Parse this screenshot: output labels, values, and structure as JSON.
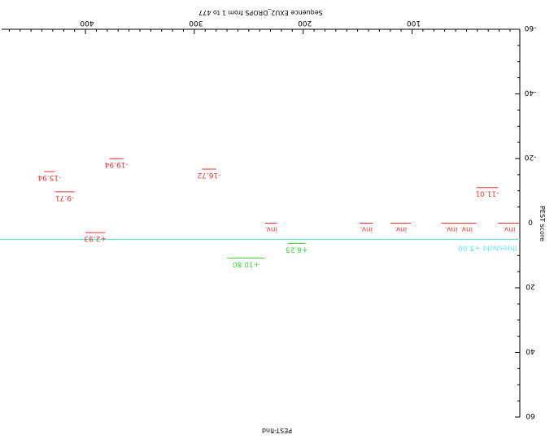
{
  "chart_data": {
    "type": "scatter",
    "title": "Sequence EXU2_DROPS from 1 to 477",
    "xlabel": "PEST-find",
    "ylabel": "PEST score",
    "orientation": "rotated 180 degrees",
    "xlim": [
      1,
      477
    ],
    "ylim": [
      -60,
      60
    ],
    "x_ticks": [
      400,
      300,
      200,
      100
    ],
    "y_ticks": [
      -60,
      -40,
      -20,
      0,
      20,
      40,
      60
    ],
    "threshold": {
      "value": 5,
      "label": "threshold +5.00",
      "color": "#66e8e0"
    },
    "colors": {
      "poor": "#ee3333",
      "potential": "#33dd33",
      "axis": "#000000"
    },
    "segments": [
      {
        "start": 428,
        "end": 438,
        "score": -15.94,
        "label": "-15.94",
        "class": "poor"
      },
      {
        "start": 410,
        "end": 428,
        "score": -9.71,
        "label": "-9.71",
        "class": "poor"
      },
      {
        "start": 365,
        "end": 378,
        "score": -19.94,
        "label": "-19.94",
        "class": "poor"
      },
      {
        "start": 382,
        "end": 400,
        "score": 2.93,
        "label": "+2.93",
        "class": "poor"
      },
      {
        "start": 280,
        "end": 293,
        "score": -16.72,
        "label": "-16.72",
        "class": "poor"
      },
      {
        "start": 235,
        "end": 270,
        "score": 10.8,
        "label": "+10.80",
        "class": "potential"
      },
      {
        "start": 198,
        "end": 214,
        "score": 6.25,
        "label": "+6.25",
        "class": "potential"
      },
      {
        "start": 224,
        "end": 235,
        "score": 0,
        "label": "inv.",
        "class": "poor"
      },
      {
        "start": 136,
        "end": 148,
        "score": 0,
        "label": "inv.",
        "class": "poor"
      },
      {
        "start": 101,
        "end": 120,
        "score": 0,
        "label": "inv.",
        "class": "poor"
      },
      {
        "start": 41,
        "end": 73,
        "score": 0,
        "label": "inv. inv.",
        "class": "poor"
      },
      {
        "start": 1,
        "end": 21,
        "score": 0,
        "label": "inv.",
        "class": "poor"
      },
      {
        "start": 21,
        "end": 41,
        "score": -11.01,
        "label": "-11.01",
        "class": "poor"
      }
    ]
  }
}
